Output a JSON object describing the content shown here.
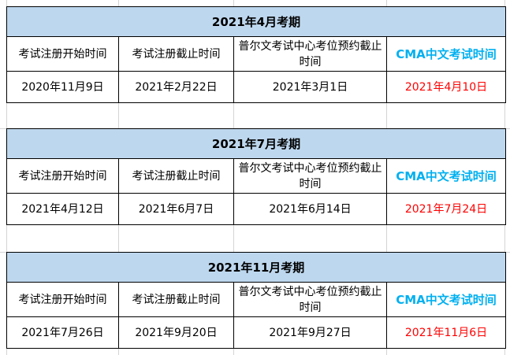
{
  "columns": [
    "考试注册开始时间",
    "考试注册截止时间",
    "普尔文考试中心考位预约截止时间",
    "CMA中文考试时间"
  ],
  "colors": {
    "header_bg": "#bdd7ee",
    "cma_label": "#00b0f0",
    "exam_date": "#ff0000"
  },
  "sessions": [
    {
      "title": "2021年4月考期",
      "dates": [
        "2020年11月9日",
        "2021年2月22日",
        "2021年3月1日",
        "2021年4月10日"
      ]
    },
    {
      "title": "2021年7月考期",
      "dates": [
        "2021年4月12日",
        "2021年6月7日",
        "2021年6月14日",
        "2021年7月24日"
      ]
    },
    {
      "title": "2021年11月考期",
      "dates": [
        "2021年7月26日",
        "2021年9月20日",
        "2021年9月27日",
        "2021年11月6日"
      ]
    }
  ]
}
